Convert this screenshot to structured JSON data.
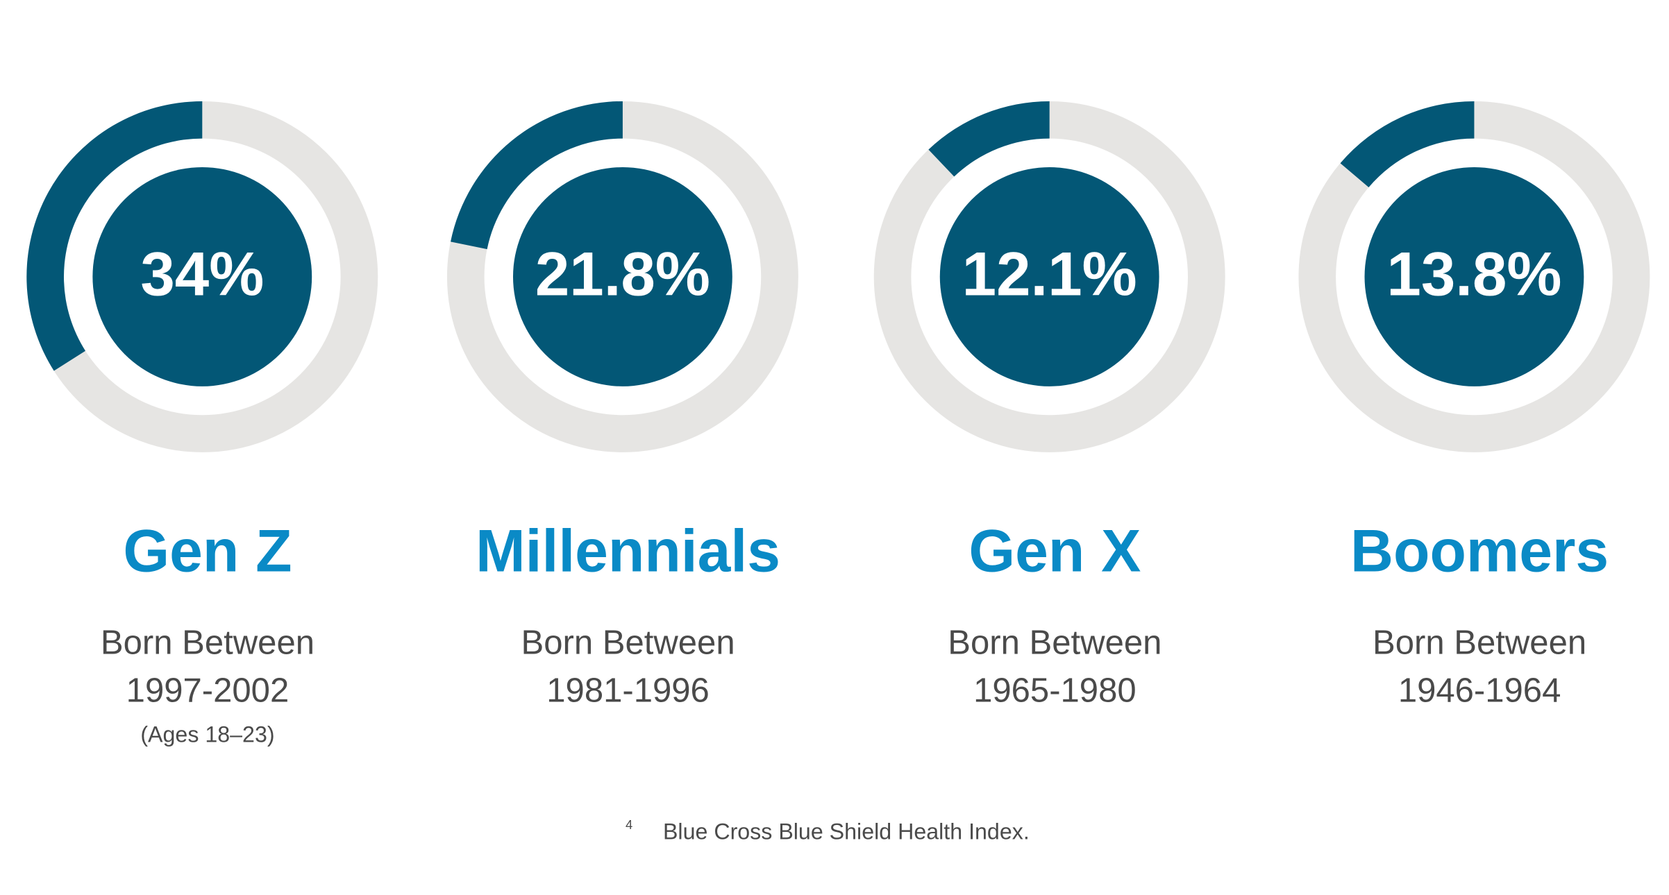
{
  "chart_data": {
    "type": "donut",
    "categories": [
      "Gen Z",
      "Millennials",
      "Gen X",
      "Boomers"
    ],
    "values": [
      34,
      21.8,
      12.1,
      13.8
    ],
    "value_labels": [
      "34%",
      "21.8%",
      "12.1%",
      "13.8%"
    ],
    "details": [
      {
        "line1": "Born Between",
        "line2": "1997-2002",
        "note": "(Ages 18–23)"
      },
      {
        "line1": "Born Between",
        "line2": "1981-1996"
      },
      {
        "line1": "Born Between",
        "line2": "1965-1980"
      },
      {
        "line1": "Born Between",
        "line2": "1946-1964"
      }
    ],
    "color": "#035776",
    "track_color": "#e6e5e3",
    "category_color": "#0a8ac6",
    "footnote_marker": "4",
    "footnote": "Blue Cross Blue Shield Health Index."
  }
}
